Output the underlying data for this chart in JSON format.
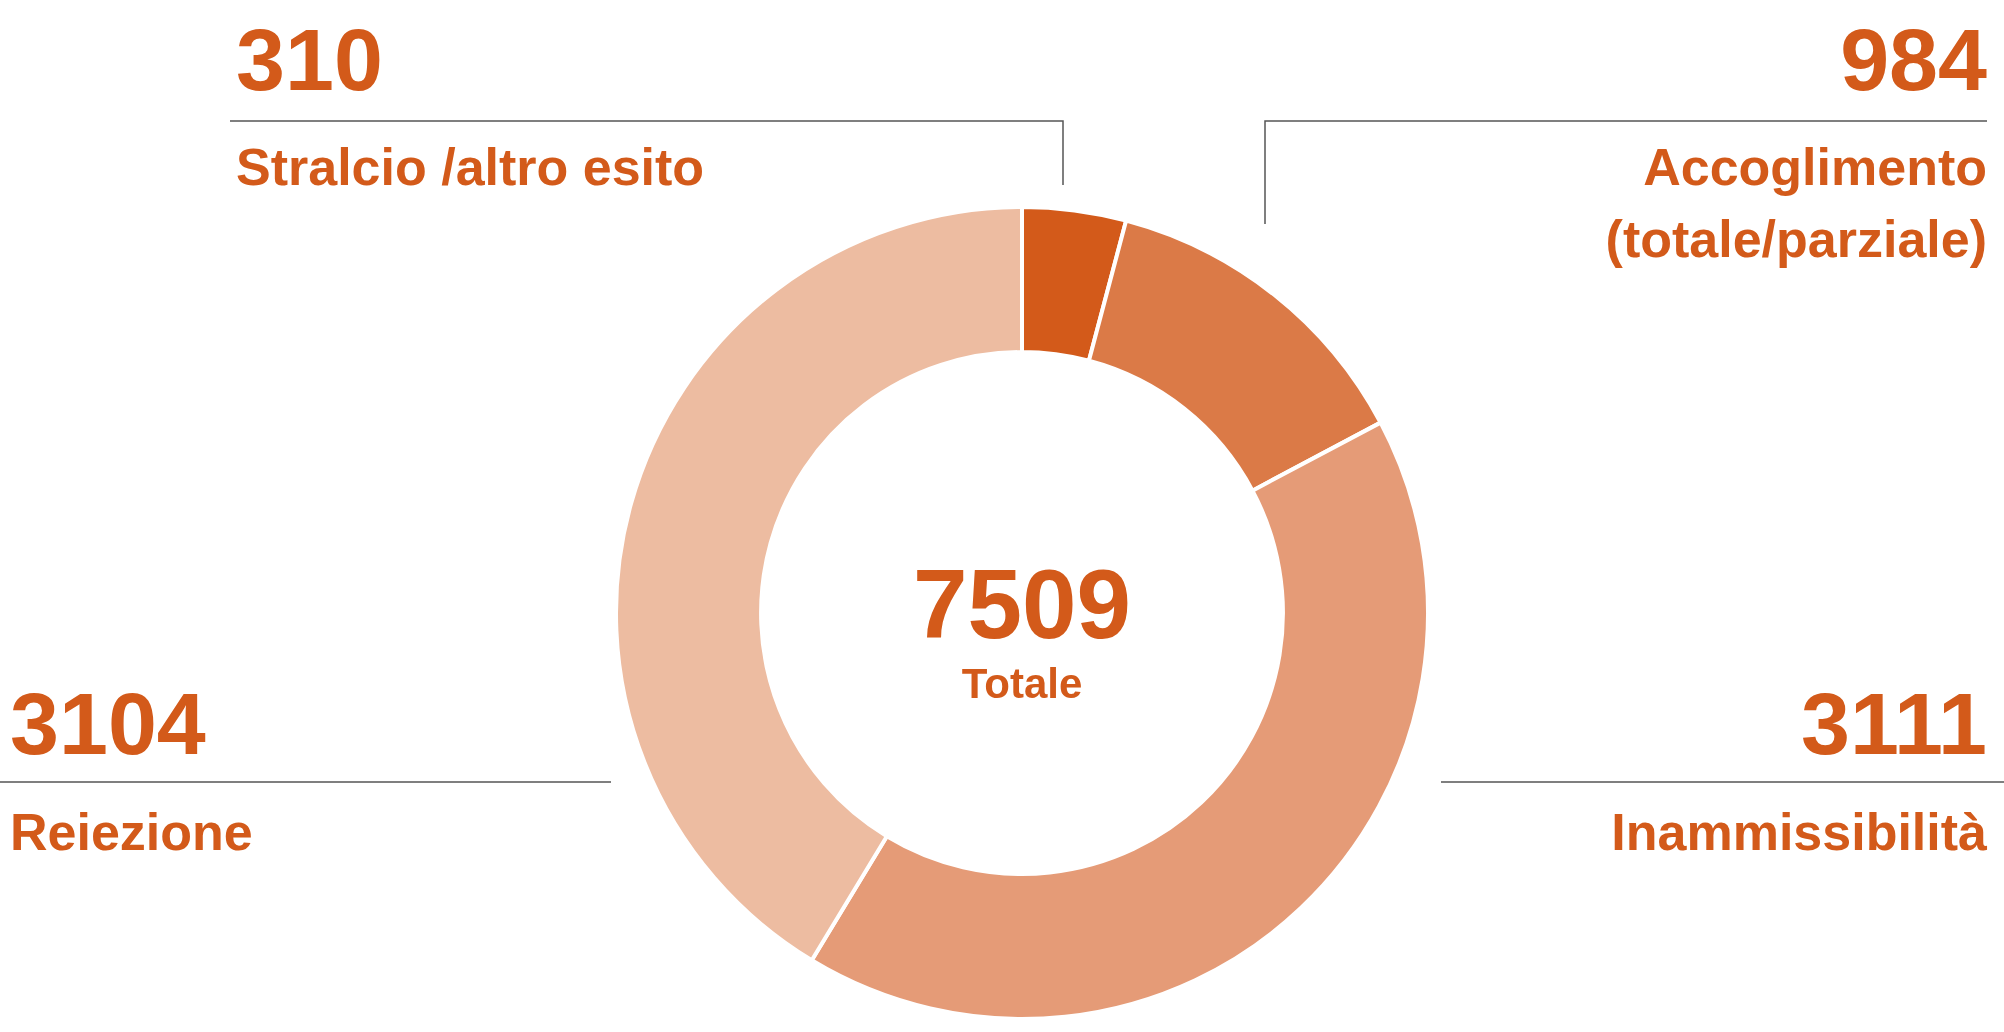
{
  "chart_data": {
    "type": "donut",
    "categories": [
      "Stralcio /altro esito",
      "Accoglimento\n(totale/parziale)",
      "Inammissibilità",
      "Reiezione"
    ],
    "values": [
      310,
      984,
      3111,
      3104
    ],
    "colors": [
      "#d35a1a",
      "#db7a47",
      "#e59b77",
      "#edbca1"
    ],
    "data_labels": true,
    "legend": false,
    "annotations": [
      "7509",
      "Totale"
    ]
  }
}
